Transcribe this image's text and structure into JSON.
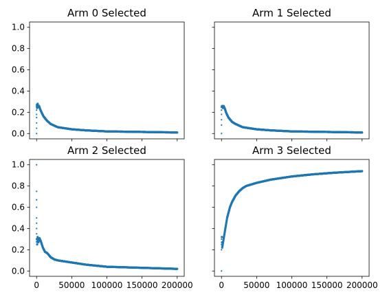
{
  "chart_data": [
    {
      "type": "scatter",
      "title": "Arm 0 Selected",
      "xlabel": "",
      "ylabel": "",
      "xlim": [
        -10000,
        210000
      ],
      "ylim": [
        -0.05,
        1.05
      ],
      "x_ticks": [
        0,
        50000,
        100000,
        150000,
        200000
      ],
      "x_tick_labels": [],
      "y_ticks": [
        0.0,
        0.2,
        0.4,
        0.6,
        0.8,
        1.0
      ],
      "y_tick_labels": [
        "0.0",
        "0.2",
        "0.4",
        "0.6",
        "0.8",
        "1.0"
      ],
      "color": "#1f77b4",
      "points": [
        [
          0,
          0.0
        ],
        [
          0,
          0.05
        ],
        [
          0,
          0.1
        ],
        [
          0,
          0.15
        ],
        [
          0,
          0.18
        ],
        [
          0,
          0.22
        ],
        [
          0,
          0.25
        ],
        [
          300,
          0.27
        ],
        [
          800,
          0.24
        ],
        [
          1500,
          0.28
        ],
        [
          2500,
          0.25
        ],
        [
          3500,
          0.26
        ],
        [
          5000,
          0.23
        ],
        [
          7000,
          0.2
        ],
        [
          10000,
          0.16
        ],
        [
          15000,
          0.12
        ],
        [
          20000,
          0.09
        ],
        [
          30000,
          0.06
        ],
        [
          40000,
          0.05
        ],
        [
          50000,
          0.04
        ],
        [
          70000,
          0.03
        ],
        [
          100000,
          0.02
        ],
        [
          150000,
          0.015
        ],
        [
          200000,
          0.01
        ]
      ]
    },
    {
      "type": "scatter",
      "title": "Arm 1 Selected",
      "xlabel": "",
      "ylabel": "",
      "xlim": [
        -10000,
        210000
      ],
      "ylim": [
        -0.05,
        1.05
      ],
      "x_ticks": [
        0,
        50000,
        100000,
        150000,
        200000
      ],
      "x_tick_labels": [],
      "y_ticks": [
        0.0,
        0.2,
        0.4,
        0.6,
        0.8,
        1.0
      ],
      "y_tick_labels": [],
      "color": "#1f77b4",
      "points": [
        [
          0,
          0.0
        ],
        [
          0,
          0.08
        ],
        [
          0,
          0.13
        ],
        [
          0,
          0.18
        ],
        [
          0,
          0.22
        ],
        [
          300,
          0.25
        ],
        [
          1000,
          0.26
        ],
        [
          2000,
          0.24
        ],
        [
          3000,
          0.26
        ],
        [
          5000,
          0.23
        ],
        [
          7000,
          0.19
        ],
        [
          10000,
          0.15
        ],
        [
          15000,
          0.11
        ],
        [
          20000,
          0.09
        ],
        [
          30000,
          0.06
        ],
        [
          40000,
          0.05
        ],
        [
          50000,
          0.04
        ],
        [
          70000,
          0.03
        ],
        [
          100000,
          0.02
        ],
        [
          150000,
          0.015
        ],
        [
          200000,
          0.01
        ]
      ]
    },
    {
      "type": "scatter",
      "title": "Arm 2 Selected",
      "xlabel": "",
      "ylabel": "",
      "xlim": [
        -10000,
        210000
      ],
      "ylim": [
        -0.05,
        1.05
      ],
      "x_ticks": [
        0,
        50000,
        100000,
        150000,
        200000
      ],
      "x_tick_labels": [
        "0",
        "50000",
        "100000",
        "150000",
        "200000"
      ],
      "y_ticks": [
        0.0,
        0.2,
        0.4,
        0.6,
        0.8,
        1.0
      ],
      "y_tick_labels": [
        "0.0",
        "0.2",
        "0.4",
        "0.6",
        "0.8",
        "1.0"
      ],
      "color": "#1f77b4",
      "points": [
        [
          0,
          1.0
        ],
        [
          0,
          0.75
        ],
        [
          0,
          0.67
        ],
        [
          0,
          0.6
        ],
        [
          0,
          0.5
        ],
        [
          0,
          0.45
        ],
        [
          0,
          0.4
        ],
        [
          0,
          0.35
        ],
        [
          300,
          0.3
        ],
        [
          800,
          0.25
        ],
        [
          1500,
          0.32
        ],
        [
          2500,
          0.27
        ],
        [
          4000,
          0.31
        ],
        [
          6000,
          0.28
        ],
        [
          9000,
          0.22
        ],
        [
          12000,
          0.18
        ],
        [
          15000,
          0.17
        ],
        [
          20000,
          0.13
        ],
        [
          25000,
          0.11
        ],
        [
          30000,
          0.1
        ],
        [
          40000,
          0.09
        ],
        [
          50000,
          0.08
        ],
        [
          70000,
          0.06
        ],
        [
          100000,
          0.04
        ],
        [
          150000,
          0.03
        ],
        [
          200000,
          0.02
        ]
      ]
    },
    {
      "type": "scatter",
      "title": "Arm 3 Selected",
      "xlabel": "",
      "ylabel": "",
      "xlim": [
        -10000,
        210000
      ],
      "ylim": [
        -0.05,
        1.05
      ],
      "x_ticks": [
        0,
        50000,
        100000,
        150000,
        200000
      ],
      "x_tick_labels": [
        "0",
        "50000",
        "100000",
        "150000",
        "200000"
      ],
      "y_ticks": [
        0.0,
        0.2,
        0.4,
        0.6,
        0.8,
        1.0
      ],
      "y_tick_labels": [],
      "color": "#1f77b4",
      "points": [
        [
          0,
          0.0
        ],
        [
          0,
          0.2
        ],
        [
          0,
          0.25
        ],
        [
          0,
          0.3
        ],
        [
          500,
          0.32
        ],
        [
          1000,
          0.22
        ],
        [
          2000,
          0.26
        ],
        [
          3000,
          0.3
        ],
        [
          5000,
          0.38
        ],
        [
          8000,
          0.5
        ],
        [
          12000,
          0.6
        ],
        [
          15000,
          0.65
        ],
        [
          20000,
          0.71
        ],
        [
          25000,
          0.75
        ],
        [
          30000,
          0.78
        ],
        [
          35000,
          0.8
        ],
        [
          40000,
          0.81
        ],
        [
          50000,
          0.83
        ],
        [
          70000,
          0.86
        ],
        [
          100000,
          0.89
        ],
        [
          130000,
          0.91
        ],
        [
          160000,
          0.925
        ],
        [
          200000,
          0.94
        ]
      ]
    }
  ]
}
